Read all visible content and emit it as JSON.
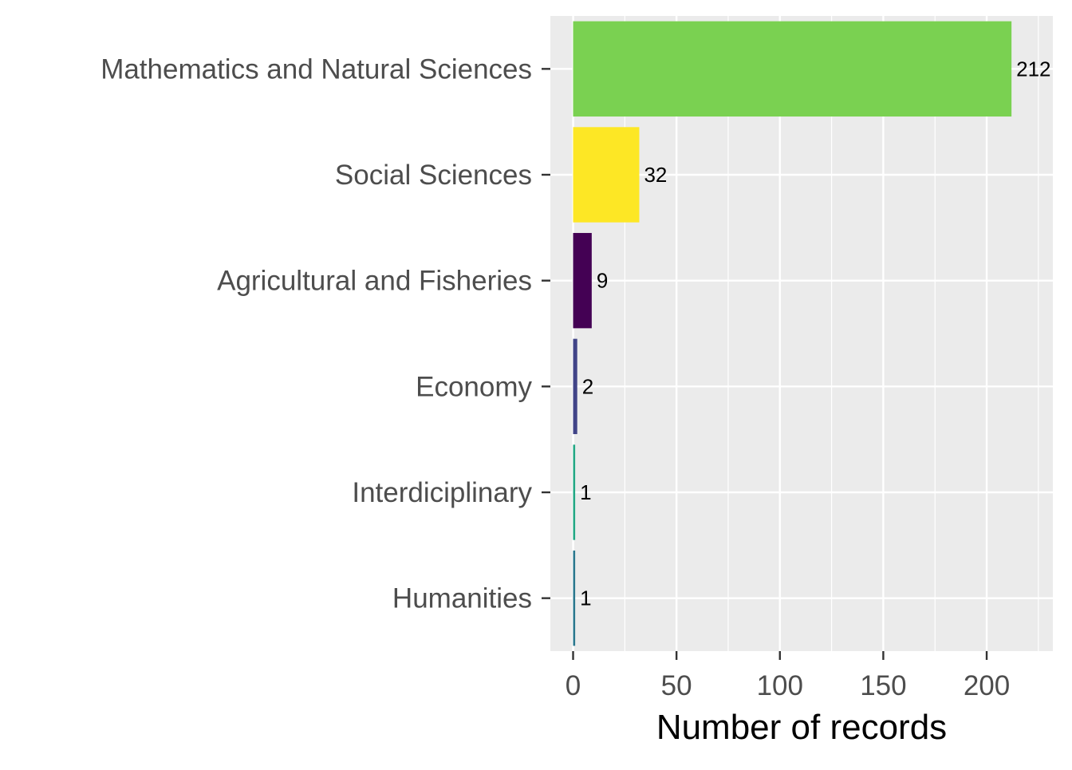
{
  "chart_data": {
    "type": "bar",
    "orientation": "horizontal",
    "categories": [
      "Mathematics and Natural Sciences",
      "Social Sciences",
      "Agricultural and Fisheries",
      "Economy",
      "Interdiciplinary",
      "Humanities"
    ],
    "values": [
      212,
      32,
      9,
      2,
      1,
      1
    ],
    "colors": [
      "#7AD151",
      "#FDE725",
      "#440154",
      "#414487",
      "#22A884",
      "#2A788E"
    ],
    "data_labels": [
      "212",
      "32",
      "9",
      "2",
      "1",
      "1"
    ],
    "xlabel": "Number of records",
    "ylabel": "",
    "xlim": [
      -11,
      232
    ],
    "x_ticks": [
      0,
      50,
      100,
      150,
      200
    ],
    "x_tick_labels": [
      "0",
      "50",
      "100",
      "150",
      "200"
    ],
    "grid": true,
    "panel_background": "#EBEBEB",
    "grid_color": "#FFFFFF",
    "legend": "none"
  }
}
